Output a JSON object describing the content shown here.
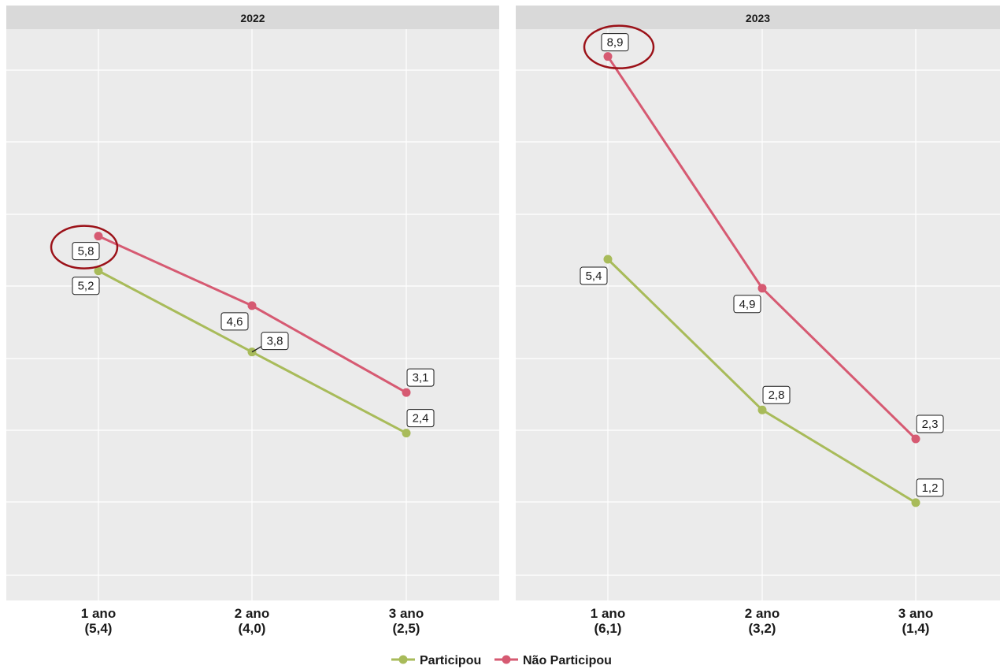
{
  "chart_data": {
    "type": "line",
    "ylim": [
      0,
      10
    ],
    "grid": true,
    "legend_position": "bottom",
    "series_styles": [
      {
        "name": "Participou",
        "color": "#a8bb5a"
      },
      {
        "name": "Não Participou",
        "color": "#d65a72"
      }
    ],
    "panels": [
      {
        "title": "2022",
        "categories": [
          "1 ano\n(5,4)",
          "2 ano\n(4,0)",
          "3 ano\n(2,5)"
        ],
        "series": [
          {
            "name": "Participou",
            "values": [
              5.2,
              3.8,
              2.4
            ],
            "labels": [
              "5,2",
              "3,8",
              "2,4"
            ]
          },
          {
            "name": "Não Participou",
            "values": [
              5.8,
              4.6,
              3.1
            ],
            "labels": [
              "5,8",
              "4,6",
              "3,1"
            ]
          }
        ],
        "highlight": {
          "series": 1,
          "index": 0
        }
      },
      {
        "title": "2023",
        "categories": [
          "1 ano\n(6,1)",
          "2 ano\n(3,2)",
          "3 ano\n(1,4)"
        ],
        "series": [
          {
            "name": "Participou",
            "values": [
              5.4,
              2.8,
              1.2
            ],
            "labels": [
              "5,4",
              "2,8",
              "1,2"
            ]
          },
          {
            "name": "Não Participou",
            "values": [
              8.9,
              4.9,
              2.3
            ],
            "labels": [
              "8,9",
              "4,9",
              "2,3"
            ]
          }
        ],
        "highlight": {
          "series": 1,
          "index": 0
        }
      }
    ],
    "legend": [
      "Participou",
      "Não Participou"
    ]
  }
}
